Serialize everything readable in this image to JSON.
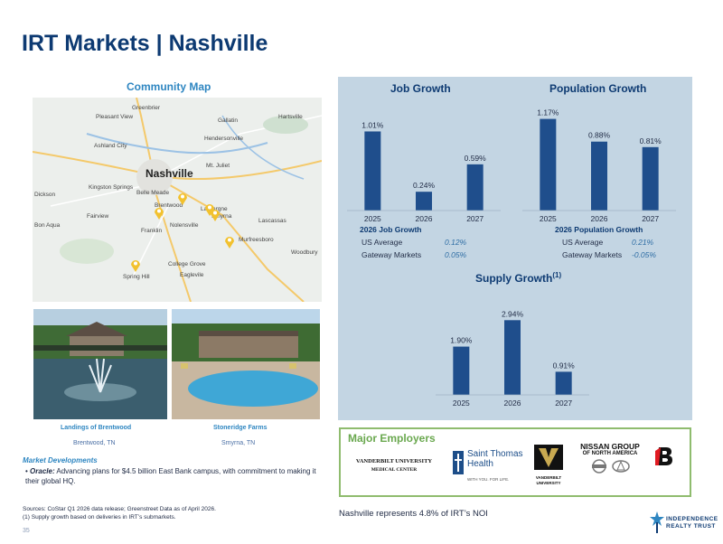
{
  "title": "IRT Markets | Nashville",
  "map": {
    "label": "Community Map",
    "city": "Nashville",
    "towns": [
      "Greenbrier",
      "Pleasant View",
      "Gallatin",
      "Hartsville",
      "Ashland City",
      "Hendersonville",
      "Mt. Juliet",
      "Kingston Springs",
      "Belle Meade",
      "Dickson",
      "Brentwood",
      "La Vergne",
      "Smyrna",
      "Bon Aqua",
      "Fairview",
      "Franklin",
      "Nolensville",
      "Lascassas",
      "Murfreesboro",
      "Woodbury",
      "College Grove",
      "Eaglevile",
      "Spring Hill"
    ]
  },
  "properties": [
    {
      "name": "Landings of Brentwood",
      "location": "Brentwood, TN"
    },
    {
      "name": "Stoneridge Farms",
      "location": "Smyrna, TN"
    }
  ],
  "developments": {
    "title": "Market Developments",
    "bullet_label": "Oracle:",
    "bullet_text": "Advancing plans for $4.5 billion East Bank campus, with commitment to making it their global HQ."
  },
  "sources": {
    "line1": "Sources: CoStar Q1 2026 data release; Greenstreet Data as of April 2026.",
    "line2": "(1)  Supply growth based on deliveries in IRT’s submarkets."
  },
  "page_number": "35",
  "chart_data": [
    {
      "type": "bar",
      "title": "Job Growth",
      "categories": [
        "2025",
        "2026",
        "2027"
      ],
      "values": [
        1.01,
        0.24,
        0.59
      ],
      "labels": [
        "1.01%",
        "0.24%",
        "0.59%"
      ],
      "ylim": [
        0,
        1.2
      ],
      "color": "#1f4e8c"
    },
    {
      "type": "bar",
      "title": "Population Growth",
      "categories": [
        "2025",
        "2026",
        "2027"
      ],
      "values": [
        1.17,
        0.88,
        0.81
      ],
      "labels": [
        "1.17%",
        "0.88%",
        "0.81%"
      ],
      "ylim": [
        0,
        1.2
      ],
      "color": "#1f4e8c"
    },
    {
      "type": "bar",
      "title": "Supply Growth",
      "title_note": "(1)",
      "categories": [
        "2025",
        "2026",
        "2027"
      ],
      "values": [
        1.9,
        2.94,
        0.91
      ],
      "labels": [
        "1.90%",
        "2.94%",
        "0.91%"
      ],
      "ylim": [
        0,
        3.2
      ],
      "color": "#1f4e8c"
    }
  ],
  "job_stats": {
    "heading": "2026 Job Growth",
    "rows": [
      {
        "label": "US Average",
        "value": "0.12%"
      },
      {
        "label": "Gateway Markets",
        "value": "0.05%"
      }
    ]
  },
  "pop_stats": {
    "heading": "2026 Population Growth",
    "rows": [
      {
        "label": "US Average",
        "value": "0.21%"
      },
      {
        "label": "Gateway Markets",
        "value": "-0.05%"
      }
    ]
  },
  "employers": {
    "title": "Major Employers",
    "vanderbilt_medical": "VANDERBILT UNIVERSITY",
    "vanderbilt_medical_sub": "MEDICAL CENTER",
    "saint_thomas": "Saint Thomas Health",
    "saint_thomas_tag": "WITH YOU. FOR LIFE.",
    "vanderbilt_univ": "VANDERBILT UNIVERSITY",
    "nissan_line1": "NISSAN GROUP",
    "nissan_line2": "OF NORTH AMERICA"
  },
  "noi_note": "Nashville represents 4.8% of IRT’s NOI",
  "logo": {
    "line1": "INDEPENDENCE",
    "line2": "REALTY TRUST"
  },
  "colors": {
    "title": "#0d3a72",
    "accent": "#2e86c1",
    "panel": "#c3d5e3",
    "bar": "#1f4e8c",
    "employers_border": "#8fbc6e"
  }
}
